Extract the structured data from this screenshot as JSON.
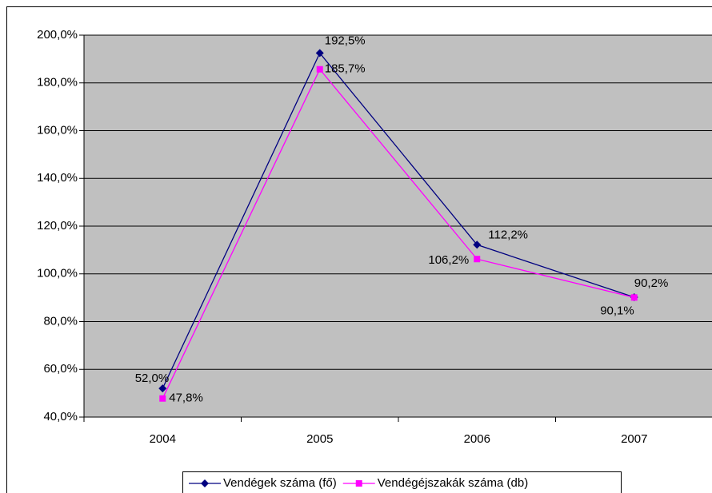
{
  "chart_data": {
    "type": "line",
    "categories": [
      "2004",
      "2005",
      "2006",
      "2007"
    ],
    "series": [
      {
        "name": "Vendégek száma (fő)",
        "color": "#000080",
        "marker": "diamond",
        "values": [
          52.0,
          192.5,
          112.2,
          90.2
        ],
        "value_labels": [
          "52,0%",
          "192,5%",
          "112,2%",
          "90,2%"
        ]
      },
      {
        "name": "Vendégéjszakák száma (db)",
        "color": "#ff00ff",
        "marker": "square",
        "values": [
          47.8,
          185.7,
          106.2,
          90.1
        ],
        "value_labels": [
          "47,8%",
          "185,7%",
          "106,2%",
          "90,1%"
        ]
      }
    ],
    "ylim": [
      40,
      200
    ],
    "yticks": [
      {
        "value": 40,
        "label": "40,0%"
      },
      {
        "value": 60,
        "label": "60,0%"
      },
      {
        "value": 80,
        "label": "80,0%"
      },
      {
        "value": 100,
        "label": "100,0%"
      },
      {
        "value": 120,
        "label": "120,0%"
      },
      {
        "value": 140,
        "label": "140,0%"
      },
      {
        "value": 160,
        "label": "160,0%"
      },
      {
        "value": 180,
        "label": "180,0%"
      },
      {
        "value": 200,
        "label": "200,0%"
      }
    ],
    "grid": true,
    "legend": "bottom",
    "plot_background": "#c0c0c0"
  }
}
